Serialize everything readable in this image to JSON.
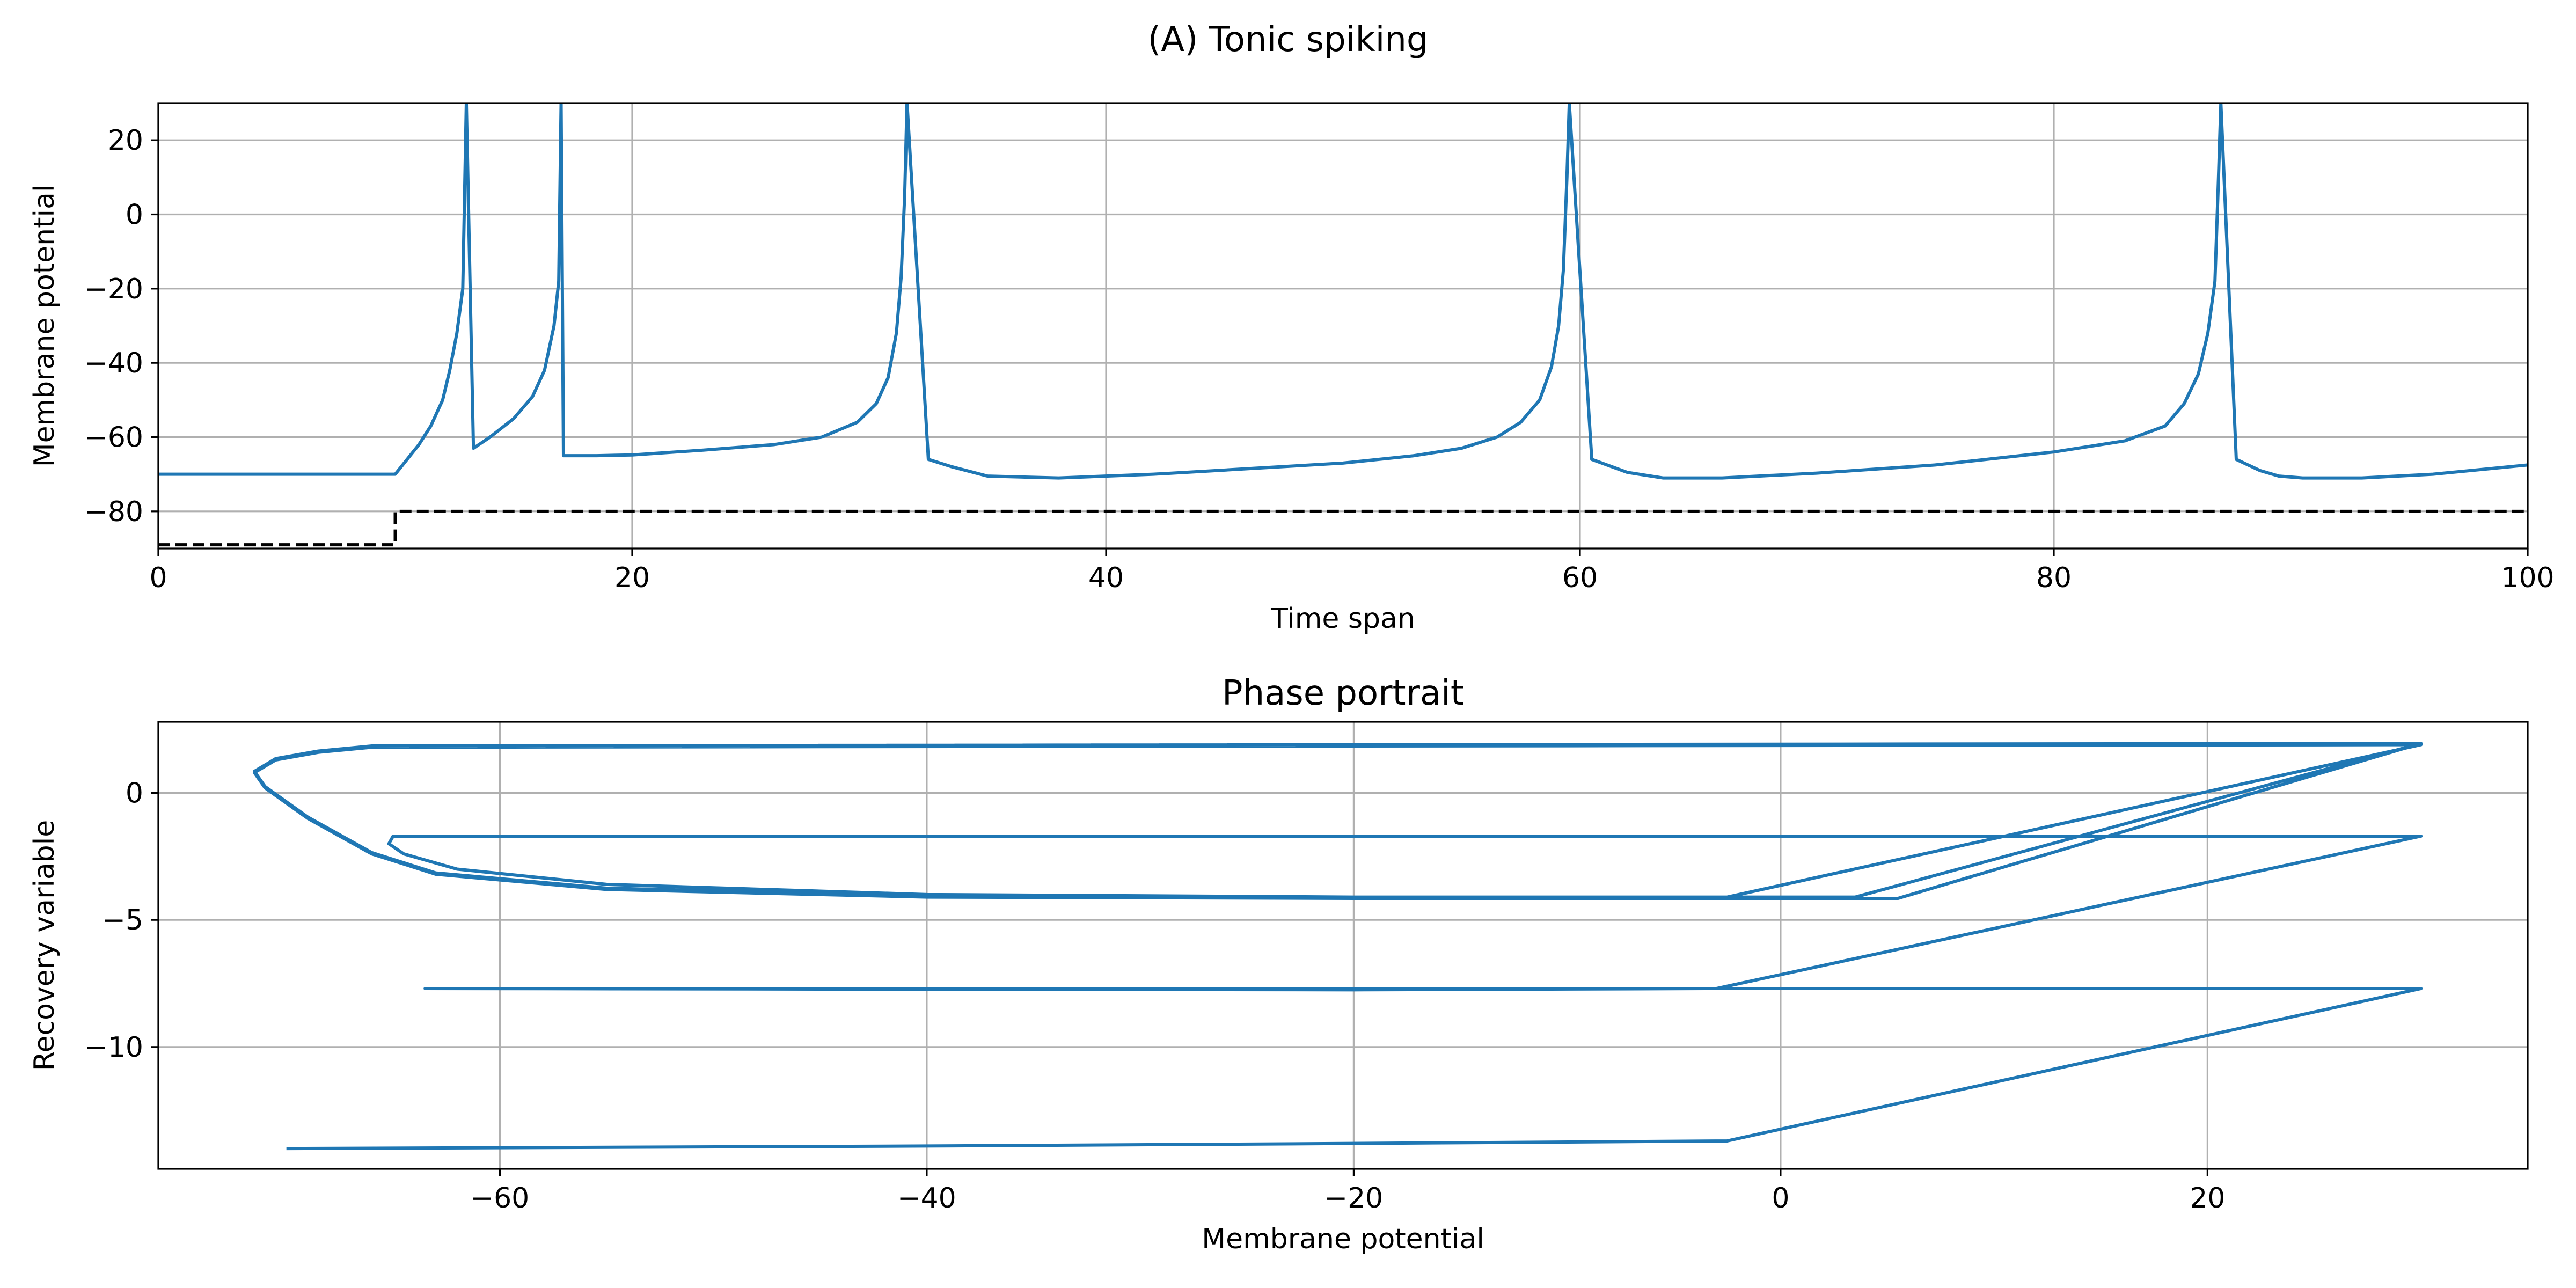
{
  "figure": {
    "suptitle": "(A) Tonic spiking"
  },
  "chart_data": [
    {
      "type": "line",
      "title": "",
      "xlabel": "Time span",
      "ylabel": "Membrane potential",
      "xlim": [
        0,
        100
      ],
      "ylim": [
        -90,
        30
      ],
      "xticks": [
        0,
        20,
        40,
        60,
        80,
        100
      ],
      "yticks": [
        -80,
        -60,
        -40,
        -20,
        0,
        20
      ],
      "grid": true,
      "series": [
        {
          "color": "#1f77b4",
          "style": "solid",
          "x": [
            0,
            10,
            10.5,
            11,
            11.5,
            12,
            12.3,
            12.6,
            12.85,
            13.0,
            13.3,
            14,
            15,
            15.8,
            16.3,
            16.7,
            16.9,
            17.0,
            17.1,
            17.3,
            18.5,
            20,
            23,
            26,
            28,
            29.5,
            30.3,
            30.8,
            31.15,
            31.35,
            31.5,
            31.6,
            32.5,
            33.5,
            35,
            38,
            42,
            46,
            50,
            53,
            55,
            56.5,
            57.5,
            58.3,
            58.8,
            59.1,
            59.3,
            59.45,
            59.55,
            60.5,
            62,
            63.5,
            66,
            70,
            75,
            80,
            83,
            84.7,
            85.5,
            86.1,
            86.5,
            86.8,
            86.95,
            87.05,
            87.7,
            88.7,
            89.5,
            90.5,
            93,
            96,
            100
          ],
          "y": [
            -70,
            -70,
            -66,
            -62,
            -57,
            -50,
            -42,
            -32,
            -20,
            30,
            -63,
            -60,
            -55,
            -49,
            -42,
            -30,
            -18,
            30,
            -65,
            -65,
            -65,
            -64.8,
            -63.5,
            -62,
            -60,
            -56,
            -51,
            -44,
            -32,
            -17,
            5,
            30,
            -66,
            -68,
            -70.5,
            -71,
            -70,
            -68.5,
            -67,
            -65,
            -63,
            -60,
            -56,
            -50,
            -41,
            -30,
            -15,
            10,
            30,
            -66,
            -69.5,
            -71,
            -71,
            -69.7,
            -67.5,
            -64,
            -61,
            -57,
            -51,
            -43,
            -32,
            -18,
            10,
            30,
            -66,
            -69,
            -70.5,
            -71,
            -71,
            -70,
            -67.5
          ]
        },
        {
          "color": "#000000",
          "style": "dashed",
          "x": [
            0,
            10,
            10,
            100
          ],
          "y": [
            -89,
            -89,
            -80,
            -80
          ]
        }
      ]
    },
    {
      "type": "line",
      "title": "Phase portrait",
      "xlabel": "Membrane potential",
      "ylabel": "Recovery variable",
      "xlim": [
        -76,
        35
      ],
      "ylim": [
        -14.8,
        2.8
      ],
      "xticks": [
        -60,
        -40,
        -20,
        0,
        20
      ],
      "yticks": [
        0,
        -5,
        -10
      ],
      "grid": true,
      "series": [
        {
          "color": "#1f77b4",
          "style": "solid",
          "x": [
            -70,
            -40,
            -20,
            -2.5,
            30,
            -63.5,
            -20,
            -3,
            30,
            -65,
            -65.2,
            -64.5,
            -62,
            -55,
            -40,
            -20,
            -2.5,
            30,
            -66,
            -68.5,
            -70.5,
            -71.5,
            -71,
            -69,
            -66,
            -63,
            -55,
            -40,
            -20,
            5.5,
            30,
            -66,
            -68.5,
            -70.5,
            -71.5,
            -71,
            -69,
            -66,
            -63,
            -55,
            -40,
            -20,
            3.5,
            30
          ],
          "y": [
            -14,
            -13.9,
            -13.8,
            -13.7,
            -7.7,
            -7.7,
            -7.75,
            -7.7,
            -1.7,
            -1.7,
            -2.0,
            -2.4,
            -3.0,
            -3.6,
            -4.0,
            -4.1,
            -4.1,
            1.9,
            1.8,
            1.6,
            1.3,
            0.8,
            0.2,
            -1.0,
            -2.4,
            -3.2,
            -3.8,
            -4.1,
            -4.15,
            -4.15,
            1.95,
            1.85,
            1.65,
            1.35,
            0.85,
            0.25,
            -0.95,
            -2.35,
            -3.15,
            -3.75,
            -4.05,
            -4.1,
            -4.1,
            1.95
          ]
        }
      ]
    }
  ]
}
